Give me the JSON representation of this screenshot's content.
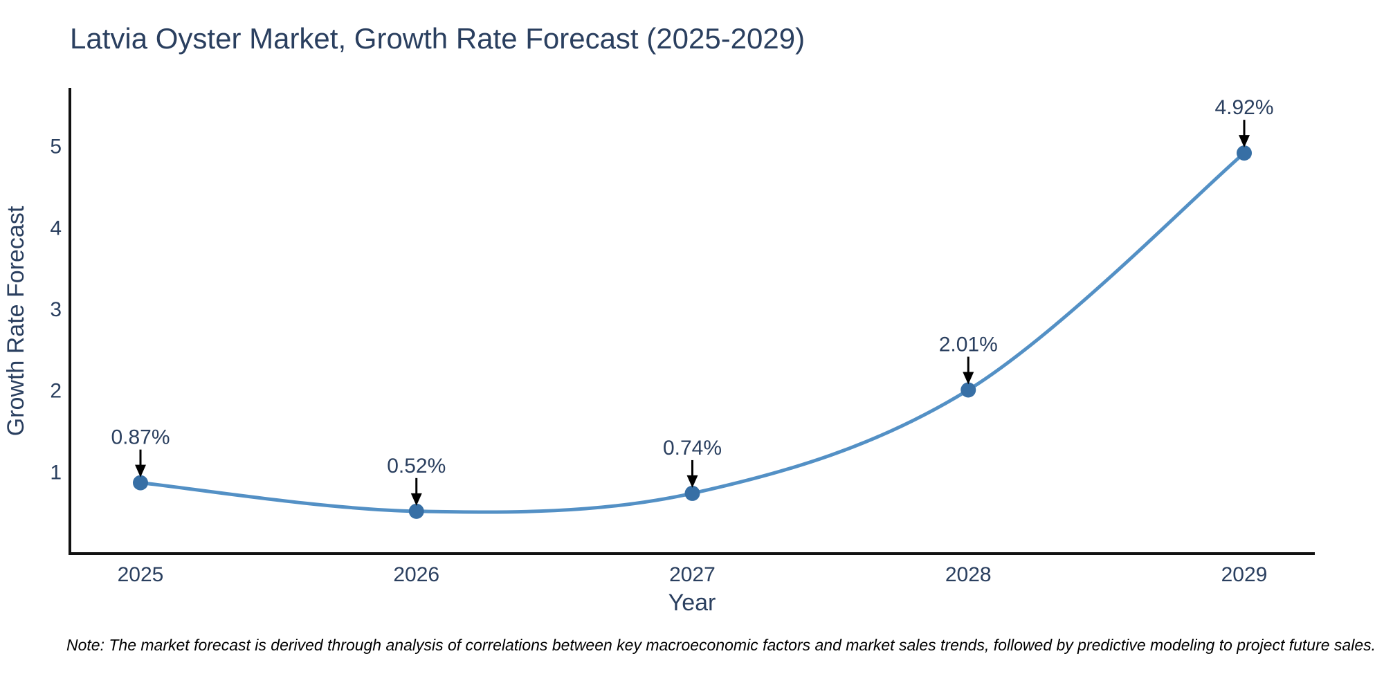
{
  "chart_data": {
    "type": "line",
    "title": "Latvia Oyster Market, Growth Rate Forecast (2025-2029)",
    "xlabel": "Year",
    "ylabel": "Growth Rate Forecast",
    "categories": [
      "2025",
      "2026",
      "2027",
      "2028",
      "2029"
    ],
    "series": [
      {
        "name": "Growth Rate Forecast",
        "values": [
          0.87,
          0.52,
          0.74,
          2.01,
          4.92
        ]
      }
    ],
    "point_labels": [
      "0.87%",
      "0.52%",
      "0.74%",
      "2.01%",
      "4.92%"
    ],
    "ylim": [
      0,
      5.72
    ],
    "yticks": [
      1,
      2,
      3,
      4,
      5
    ],
    "line_shape": "spline",
    "grid": false,
    "legend": "none",
    "colors": {
      "line": "#5390c5",
      "marker": "#376fa5",
      "axis": "#111111",
      "text": "#2a3f5f",
      "annotation_arrow": "#000000",
      "background": "#ffffff"
    }
  },
  "note": {
    "text": "Note: The market forecast is derived through analysis of correlations between key macroeconomic factors and market sales trends, followed by predictive modeling to project future sales."
  }
}
